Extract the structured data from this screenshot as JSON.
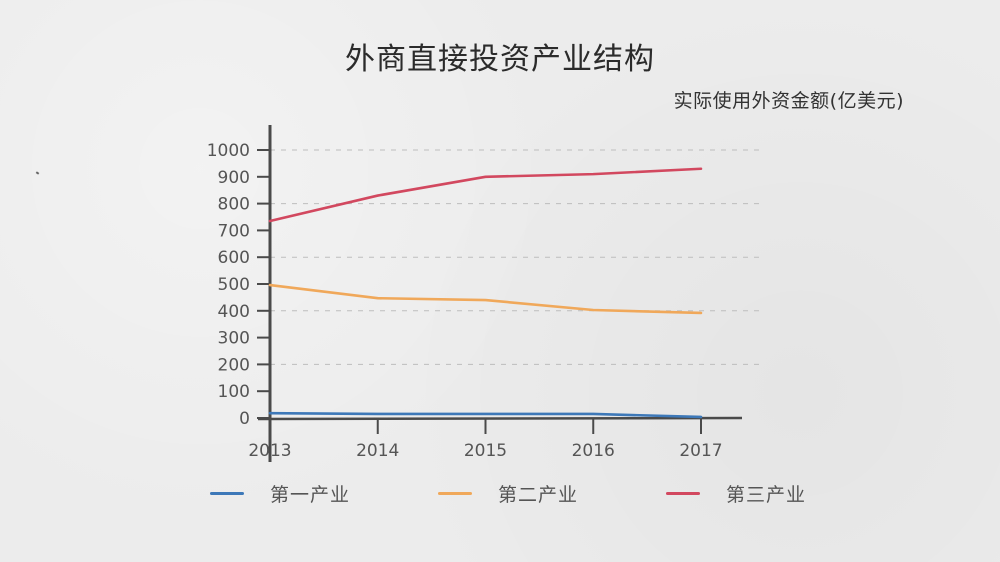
{
  "title": "外商直接投资产业结构",
  "subtitle": "实际使用外资金额(亿美元)",
  "colors": {
    "background": "#ececec",
    "axis": "#4a4a4a",
    "grid": "#bdbdbd",
    "series1": "#3d78b8",
    "series2": "#f0a85a",
    "series3": "#d2485f"
  },
  "chart_data": {
    "type": "line",
    "title": "外商直接投资产业结构",
    "subtitle": "实际使用外资金额(亿美元)",
    "xlabel": "",
    "ylabel": "实际使用外资金额(亿美元)",
    "categories": [
      "2013",
      "2014",
      "2015",
      "2016",
      "2017"
    ],
    "series": [
      {
        "name": "第一产业",
        "color": "#3d78b8",
        "values": [
          18,
          15,
          15,
          15,
          4
        ]
      },
      {
        "name": "第二产业",
        "color": "#f0a85a",
        "values": [
          496,
          447,
          440,
          403,
          392
        ]
      },
      {
        "name": "第三产业",
        "color": "#d2485f",
        "values": [
          735,
          830,
          900,
          910,
          930
        ]
      }
    ],
    "ylim": [
      0,
      1000
    ],
    "yticks": [
      0,
      100,
      200,
      300,
      400,
      500,
      600,
      700,
      800,
      900,
      1000
    ],
    "grid": {
      "style": "dashed",
      "horizontal_at": [
        200,
        400,
        600,
        800,
        1000
      ]
    },
    "legend_position": "bottom"
  },
  "legend": [
    {
      "label": "第一产业",
      "color": "#3d78b8"
    },
    {
      "label": "第二产业",
      "color": "#f0a85a"
    },
    {
      "label": "第三产业",
      "color": "#d2485f"
    }
  ]
}
